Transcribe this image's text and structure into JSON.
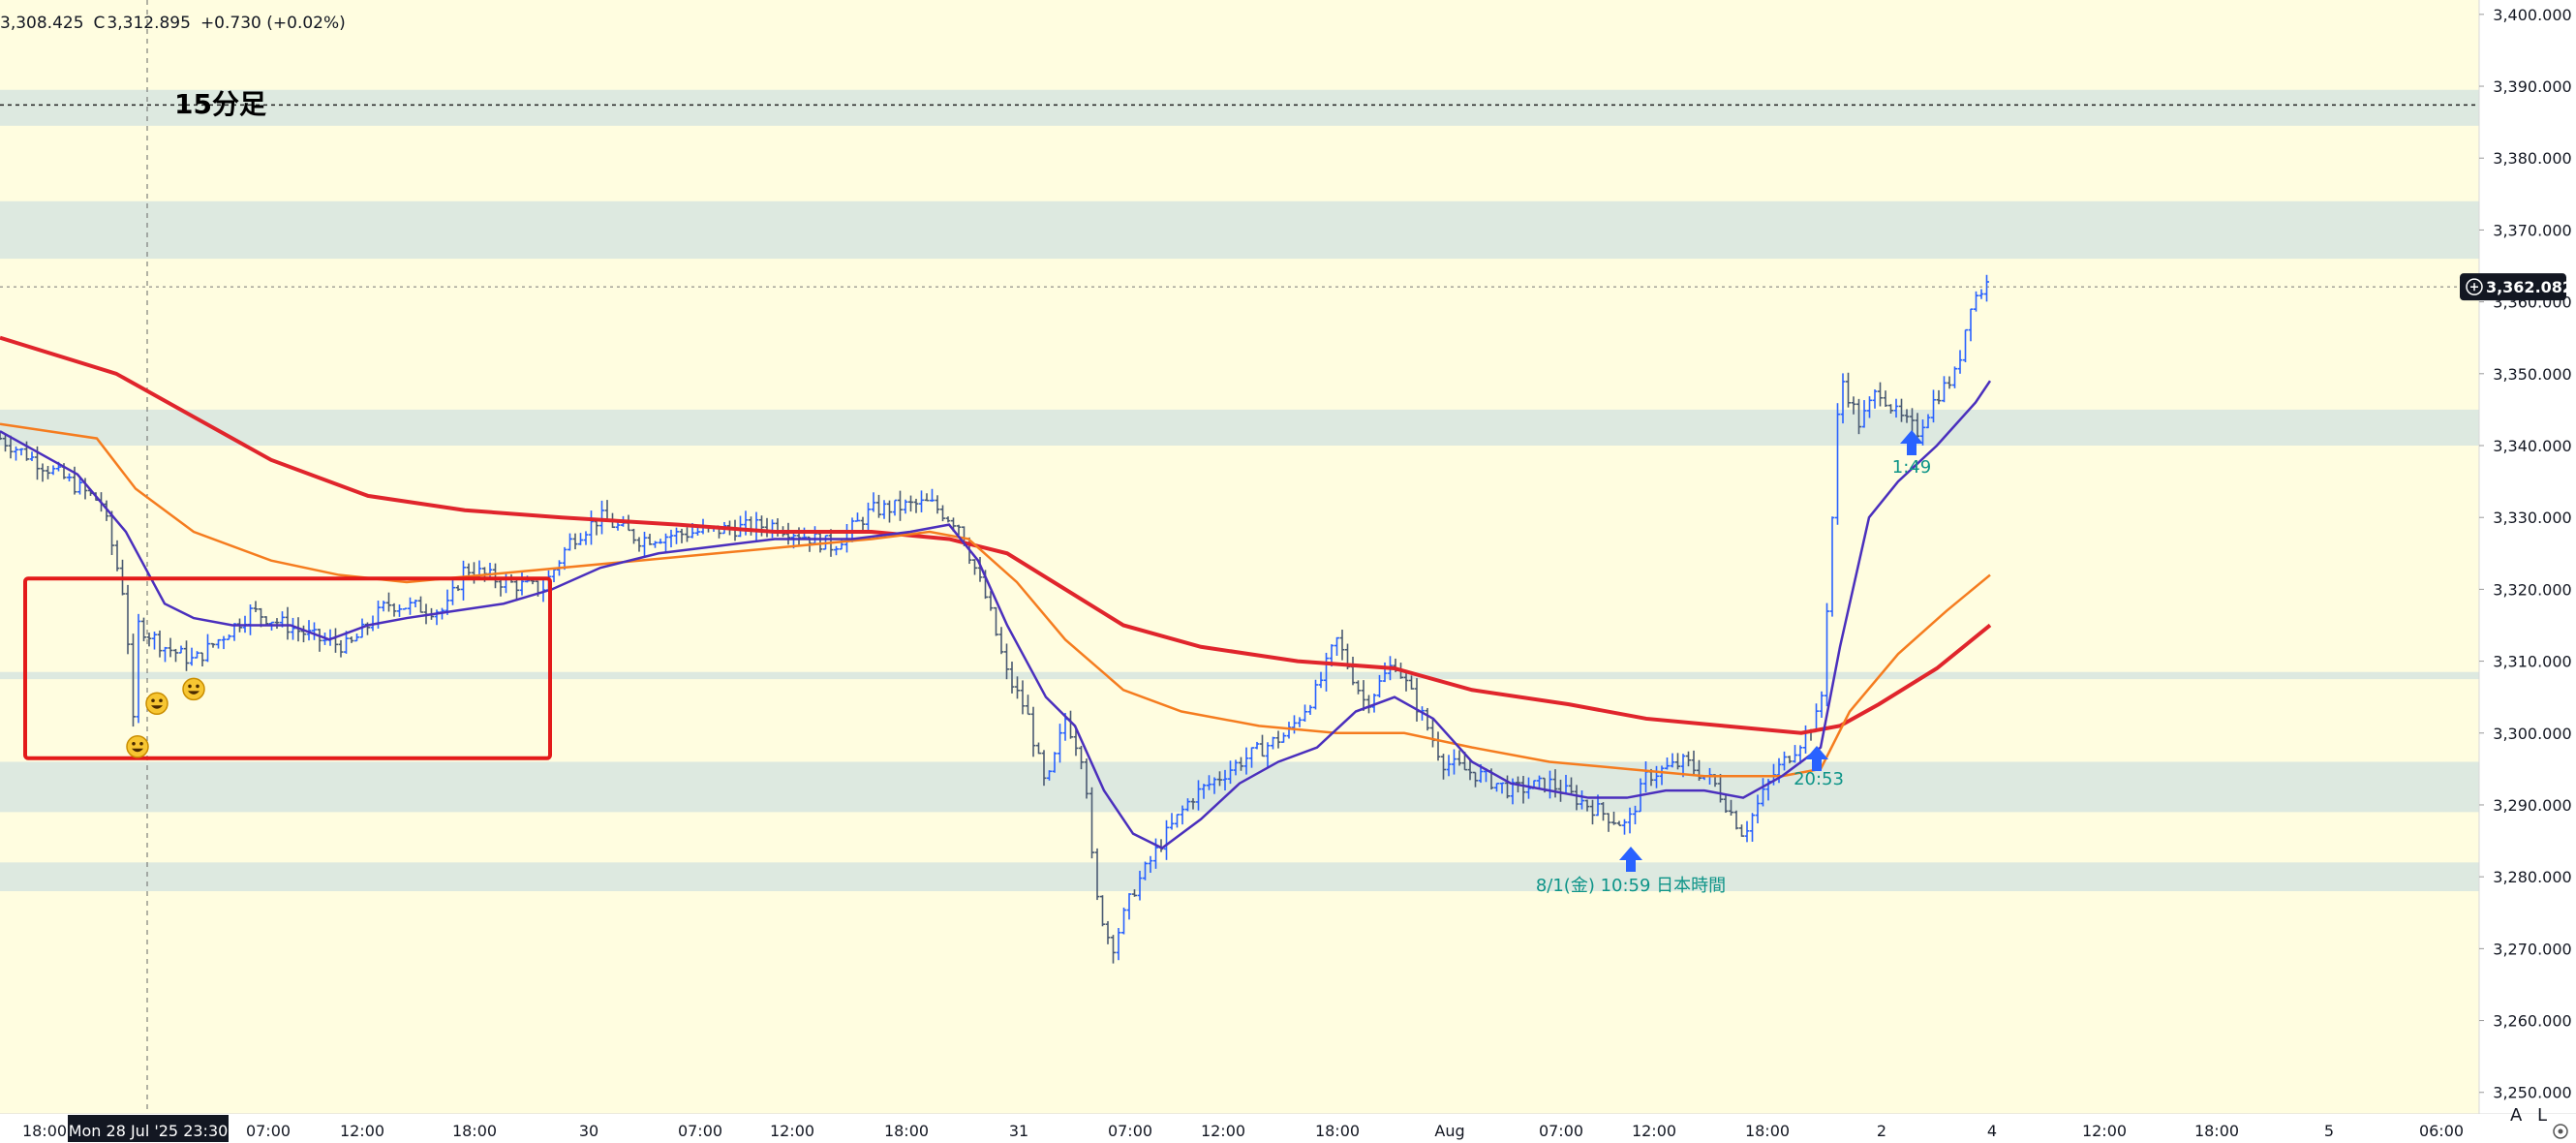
{
  "header": {
    "ohlc_text": "3,308.425",
    "close_label": "C",
    "close_value": "3,312.895",
    "change": "+0.730 (+0.02%)"
  },
  "timeframe_label": "15分足",
  "price_axis": {
    "ticks": [
      "3,400.000",
      "3,390.000",
      "3,380.000",
      "3,370.000",
      "3,360.000",
      "3,350.000",
      "3,340.000",
      "3,330.000",
      "3,320.000",
      "3,310.000",
      "3,300.000",
      "3,290.000",
      "3,280.000",
      "3,270.000",
      "3,260.000",
      "3,250.000"
    ],
    "current_price": "3,362.082"
  },
  "time_axis": {
    "labels": [
      "18:00",
      "Mon 28 Jul '25",
      "23:30",
      "07:00",
      "12:00",
      "18:00",
      "30",
      "07:00",
      "12:00",
      "18:00",
      "31",
      "07:00",
      "12:00",
      "18:00",
      "Aug",
      "07:00",
      "12:00",
      "18:00",
      "2",
      "4",
      "12:00",
      "18:00",
      "5",
      "06:00"
    ],
    "crosshair_label": "Mon 28 Jul '25   23:30"
  },
  "annotations": {
    "arrow1": "8/1(金) 10:59 日本時間",
    "arrow2": "20:53",
    "arrow3": "1:49"
  },
  "bottom_controls": {
    "auto": "A",
    "log": "L"
  },
  "colors": {
    "background": "#fffde0",
    "zone": "#dde9e0",
    "candle": "#2962ff",
    "ema_fast": "#4a2fbd",
    "ema_mid": "#f57c1f",
    "ema_slow": "#e0252c",
    "box": "#e31a1a"
  },
  "chart_data": {
    "type": "candlestick",
    "symbol_timeframe": "15分足",
    "ylim": [
      3247,
      3402
    ],
    "zones": [
      [
        3384.5,
        3389.5
      ],
      [
        3366,
        3374
      ],
      [
        3340,
        3345
      ],
      [
        3307.5,
        3308.5
      ],
      [
        3289,
        3296
      ],
      [
        3278,
        3282
      ]
    ],
    "price_path": [
      [
        0,
        3341
      ],
      [
        60,
        3336
      ],
      [
        105,
        3332
      ],
      [
        130,
        3318
      ],
      [
        137,
        3300
      ],
      [
        143,
        3315
      ],
      [
        170,
        3312
      ],
      [
        200,
        3310
      ],
      [
        260,
        3317
      ],
      [
        330,
        3313
      ],
      [
        360,
        3312
      ],
      [
        400,
        3318
      ],
      [
        460,
        3317
      ],
      [
        480,
        3323
      ],
      [
        520,
        3321
      ],
      [
        560,
        3320
      ],
      [
        590,
        3327
      ],
      [
        620,
        3330
      ],
      [
        660,
        3327
      ],
      [
        720,
        3328
      ],
      [
        800,
        3329
      ],
      [
        860,
        3326
      ],
      [
        900,
        3331
      ],
      [
        960,
        3332
      ],
      [
        990,
        3329
      ],
      [
        1020,
        3318
      ],
      [
        1040,
        3308
      ],
      [
        1060,
        3303
      ],
      [
        1080,
        3292
      ],
      [
        1100,
        3302
      ],
      [
        1120,
        3296
      ],
      [
        1130,
        3278
      ],
      [
        1148,
        3270
      ],
      [
        1170,
        3278
      ],
      [
        1200,
        3285
      ],
      [
        1230,
        3291
      ],
      [
        1280,
        3296
      ],
      [
        1330,
        3300
      ],
      [
        1360,
        3306
      ],
      [
        1380,
        3313
      ],
      [
        1410,
        3304
      ],
      [
        1440,
        3310
      ],
      [
        1470,
        3302
      ],
      [
        1490,
        3296
      ],
      [
        1530,
        3294
      ],
      [
        1560,
        3292
      ],
      [
        1600,
        3293
      ],
      [
        1640,
        3290
      ],
      [
        1680,
        3287
      ],
      [
        1700,
        3294
      ],
      [
        1740,
        3296
      ],
      [
        1770,
        3293
      ],
      [
        1800,
        3286
      ],
      [
        1830,
        3294
      ],
      [
        1860,
        3299
      ],
      [
        1880,
        3303
      ],
      [
        1892,
        3330
      ],
      [
        1900,
        3350
      ],
      [
        1920,
        3343
      ],
      [
        1940,
        3348
      ],
      [
        1960,
        3344
      ],
      [
        1980,
        3342
      ],
      [
        2000,
        3347
      ],
      [
        2020,
        3350
      ],
      [
        2035,
        3360
      ],
      [
        2055,
        3363
      ]
    ],
    "ema_fast_path": [
      [
        0,
        3342
      ],
      [
        80,
        3336
      ],
      [
        130,
        3328
      ],
      [
        170,
        3318
      ],
      [
        200,
        3316
      ],
      [
        240,
        3315
      ],
      [
        300,
        3315
      ],
      [
        340,
        3313
      ],
      [
        380,
        3315
      ],
      [
        420,
        3316
      ],
      [
        470,
        3317
      ],
      [
        520,
        3318
      ],
      [
        570,
        3320
      ],
      [
        620,
        3323
      ],
      [
        680,
        3325
      ],
      [
        740,
        3326
      ],
      [
        800,
        3327
      ],
      [
        880,
        3327
      ],
      [
        940,
        3328
      ],
      [
        980,
        3329
      ],
      [
        1010,
        3324
      ],
      [
        1040,
        3315
      ],
      [
        1080,
        3305
      ],
      [
        1110,
        3301
      ],
      [
        1140,
        3292
      ],
      [
        1170,
        3286
      ],
      [
        1200,
        3284
      ],
      [
        1240,
        3288
      ],
      [
        1280,
        3293
      ],
      [
        1320,
        3296
      ],
      [
        1360,
        3298
      ],
      [
        1400,
        3303
      ],
      [
        1440,
        3305
      ],
      [
        1480,
        3302
      ],
      [
        1520,
        3296
      ],
      [
        1560,
        3293
      ],
      [
        1600,
        3292
      ],
      [
        1640,
        3291
      ],
      [
        1680,
        3291
      ],
      [
        1720,
        3292
      ],
      [
        1760,
        3292
      ],
      [
        1800,
        3291
      ],
      [
        1840,
        3294
      ],
      [
        1880,
        3298
      ],
      [
        1900,
        3312
      ],
      [
        1930,
        3330
      ],
      [
        1960,
        3335
      ],
      [
        2000,
        3340
      ],
      [
        2040,
        3346
      ],
      [
        2055,
        3349
      ]
    ],
    "ema_mid_path": [
      [
        0,
        3343
      ],
      [
        100,
        3341
      ],
      [
        140,
        3334
      ],
      [
        200,
        3328
      ],
      [
        280,
        3324
      ],
      [
        350,
        3322
      ],
      [
        420,
        3321
      ],
      [
        500,
        3322
      ],
      [
        580,
        3323
      ],
      [
        660,
        3324
      ],
      [
        740,
        3325
      ],
      [
        820,
        3326
      ],
      [
        900,
        3327
      ],
      [
        960,
        3328
      ],
      [
        1000,
        3327
      ],
      [
        1050,
        3321
      ],
      [
        1100,
        3313
      ],
      [
        1160,
        3306
      ],
      [
        1220,
        3303
      ],
      [
        1300,
        3301
      ],
      [
        1380,
        3300
      ],
      [
        1450,
        3300
      ],
      [
        1520,
        3298
      ],
      [
        1600,
        3296
      ],
      [
        1680,
        3295
      ],
      [
        1760,
        3294
      ],
      [
        1840,
        3294
      ],
      [
        1880,
        3295
      ],
      [
        1910,
        3303
      ],
      [
        1960,
        3311
      ],
      [
        2010,
        3317
      ],
      [
        2055,
        3322
      ]
    ],
    "ema_slow_path": [
      [
        0,
        3355
      ],
      [
        120,
        3350
      ],
      [
        200,
        3344
      ],
      [
        280,
        3338
      ],
      [
        380,
        3333
      ],
      [
        480,
        3331
      ],
      [
        580,
        3330
      ],
      [
        700,
        3329
      ],
      [
        800,
        3328
      ],
      [
        900,
        3328
      ],
      [
        980,
        3327
      ],
      [
        1040,
        3325
      ],
      [
        1100,
        3320
      ],
      [
        1160,
        3315
      ],
      [
        1240,
        3312
      ],
      [
        1340,
        3310
      ],
      [
        1440,
        3309
      ],
      [
        1520,
        3306
      ],
      [
        1620,
        3304
      ],
      [
        1700,
        3302
      ],
      [
        1780,
        3301
      ],
      [
        1860,
        3300
      ],
      [
        1900,
        3301
      ],
      [
        1940,
        3304
      ],
      [
        2000,
        3309
      ],
      [
        2055,
        3315
      ]
    ],
    "markers": [
      [
        142,
        3300
      ],
      [
        162,
        3306
      ],
      [
        200,
        3308
      ]
    ]
  }
}
